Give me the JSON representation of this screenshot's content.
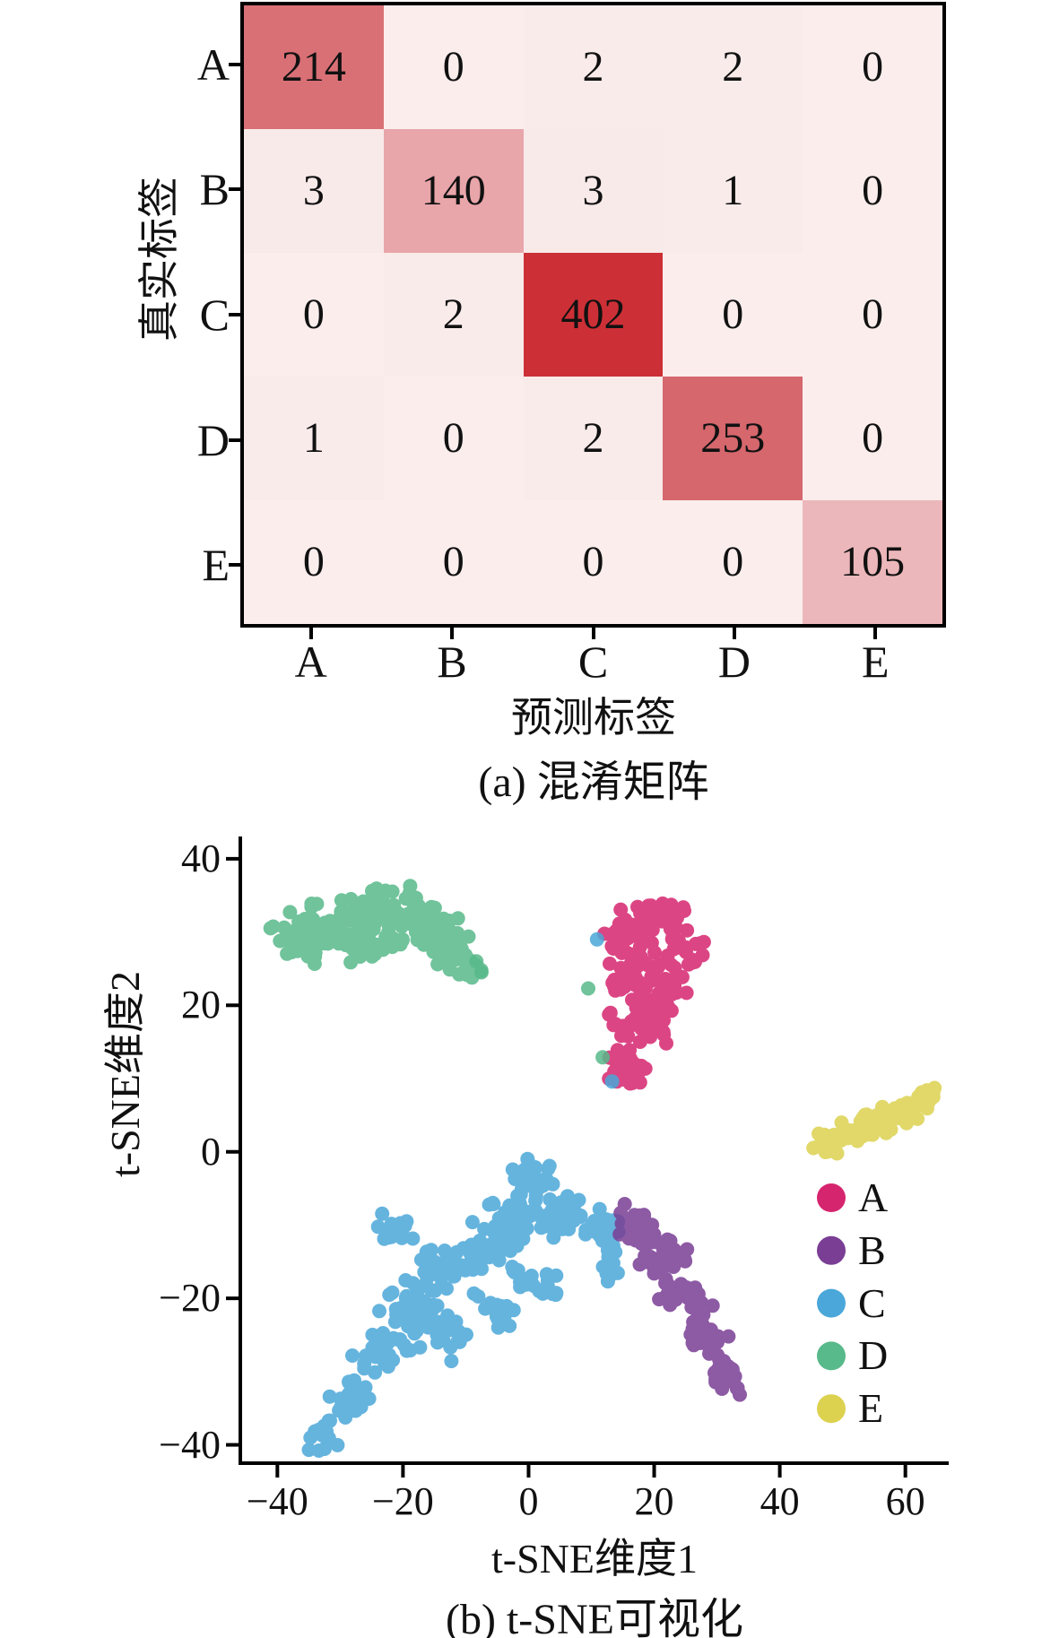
{
  "chart_data": [
    {
      "type": "heatmap",
      "title": "(a) 混淆矩阵",
      "xlabel": "预测标签",
      "ylabel": "真实标签",
      "x_categories": [
        "A",
        "B",
        "C",
        "D",
        "E"
      ],
      "y_categories": [
        "A",
        "B",
        "C",
        "D",
        "E"
      ],
      "values": [
        [
          214,
          0,
          2,
          2,
          0
        ],
        [
          3,
          140,
          3,
          1,
          0
        ],
        [
          0,
          2,
          402,
          0,
          0
        ],
        [
          1,
          0,
          2,
          253,
          0
        ],
        [
          0,
          0,
          0,
          0,
          105
        ]
      ],
      "value_colors": {
        "0": "#faedec",
        "1": "#f9ebea",
        "2": "#f9ebea",
        "3": "#f8eae9",
        "105": "#ecb7ba",
        "140": "#e8a5aa",
        "214": "#d97076",
        "253": "#d5676d",
        "402": "#cc3036"
      },
      "text_color": "#111111",
      "border_color": "#000000"
    },
    {
      "type": "scatter",
      "title": "(b) t-SNE可视化",
      "xlabel": "t-SNE维度1",
      "ylabel": "t-SNE维度2",
      "xticks": [
        "−40",
        "−20",
        "0",
        "20",
        "40",
        "60"
      ],
      "xtick_values": [
        -40,
        -20,
        0,
        20,
        40,
        60
      ],
      "yticks": [
        "40",
        "20",
        "0",
        "−20",
        "−40"
      ],
      "ytick_values": [
        40,
        20,
        0,
        -20,
        -40
      ],
      "xlim": [
        -45.9,
        66.9
      ],
      "ylim": [
        -42.5,
        42.8
      ],
      "grid": false,
      "legend_position": "right-middle",
      "point_radius_px": 8,
      "point_opacity": 0.85,
      "blob_format": "[center_x, center_y, radius_x, radius_y, angle_deg, n_points]",
      "series": [
        {
          "name": "C",
          "color": "#4ba7d9",
          "count": 424,
          "blobs": [
            [
              1,
              -3.5,
              3,
              2.2,
              0,
              25
            ],
            [
              -1.5,
              -8.5,
              4.5,
              2.8,
              0,
              40
            ],
            [
              5.5,
              -9,
              3.8,
              2.5,
              0,
              35
            ],
            [
              11.5,
              -10,
              3,
              2.2,
              0,
              28
            ],
            [
              12.8,
              -16.5,
              1.3,
              3.5,
              0,
              14
            ],
            [
              -6.5,
              -12.5,
              4.5,
              3,
              0,
              38
            ],
            [
              -13,
              -16,
              4.5,
              3,
              0,
              38
            ],
            [
              -19,
              -21,
              4.5,
              3,
              0,
              36
            ],
            [
              -24,
              -27,
              4,
              2.8,
              25,
              32
            ],
            [
              -29,
              -34,
              3.5,
              2.5,
              30,
              28
            ],
            [
              -33,
              -39,
              2.5,
              1.8,
              25,
              16
            ],
            [
              -13.5,
              -25,
              4.5,
              2.8,
              -20,
              30
            ],
            [
              1,
              -17.5,
              3.8,
              2.2,
              -25,
              24
            ],
            [
              -5,
              -21.5,
              3.8,
              2.2,
              -25,
              24
            ],
            [
              -21,
              -11,
              3,
              2,
              -25,
              16
            ]
          ]
        },
        {
          "name": "B",
          "color": "#7a3e95",
          "count": 147,
          "blobs": [
            [
              17.5,
              -10,
              3.2,
              2.3,
              -30,
              30
            ],
            [
              21.5,
              -14.5,
              3.8,
              2.6,
              -35,
              35
            ],
            [
              25,
              -20,
              3.6,
              2.6,
              -40,
              32
            ],
            [
              28.5,
              -25.5,
              3.2,
              2.2,
              -42,
              28
            ],
            [
              31.5,
              -30.5,
              2.8,
              1.8,
              -40,
              22
            ]
          ]
        },
        {
          "name": "D",
          "color": "#58b98a",
          "count": 256,
          "blobs": [
            [
              -37,
              29.5,
              4,
              2.5,
              -15,
              40
            ],
            [
              -30,
              31.5,
              5,
              3,
              0,
              50
            ],
            [
              -23,
              32.5,
              5,
              3,
              5,
              50
            ],
            [
              -16.5,
              31,
              4.5,
              3,
              -15,
              45
            ],
            [
              -11,
              27,
              3.5,
              2.5,
              -25,
              35
            ],
            [
              -26,
              27.5,
              5,
              2,
              0,
              26
            ],
            [
              -8,
              24.5,
              2,
              1.5,
              -20,
              10
            ]
          ]
        },
        {
          "name": "A",
          "color": "#d6256f",
          "count": 218,
          "blobs": [
            [
              19.5,
              31.5,
              5.5,
              3.2,
              15,
              50
            ],
            [
              16.5,
              25,
              4,
              3,
              0,
              40
            ],
            [
              17.5,
              18,
              4.2,
              3.5,
              0,
              45
            ],
            [
              15.5,
              11.5,
              3,
              2.8,
              0,
              28
            ],
            [
              22.5,
              22.5,
              3.2,
              2.8,
              0,
              25
            ],
            [
              24.5,
              28,
              3,
              2.5,
              0,
              20
            ],
            [
              14,
              30.5,
              2.5,
              2.5,
              0,
              10
            ]
          ]
        },
        {
          "name": "E",
          "color": "#dcd24f",
          "count": 105,
          "blobs": [
            [
              47.5,
              0.8,
              2.8,
              1.7,
              20,
              22
            ],
            [
              52,
              2.5,
              3,
              1.8,
              20,
              24
            ],
            [
              56.5,
              4.2,
              3,
              1.8,
              20,
              24
            ],
            [
              60.5,
              6,
              2.8,
              1.7,
              20,
              22
            ],
            [
              63.5,
              7.5,
              2,
              1.4,
              20,
              13
            ]
          ]
        }
      ],
      "stray_points": [
        {
          "series": "D",
          "x": 9.5,
          "y": 22.3
        },
        {
          "series": "D",
          "x": 11.8,
          "y": 12.9
        },
        {
          "series": "D",
          "x": -8.3,
          "y": 26.0
        },
        {
          "series": "D",
          "x": -7.5,
          "y": 24.5
        },
        {
          "series": "C",
          "x": 10.9,
          "y": 29.0
        },
        {
          "series": "C",
          "x": 13.3,
          "y": 9.6
        }
      ],
      "legend": [
        {
          "label": "A",
          "color": "#d6256f"
        },
        {
          "label": "B",
          "color": "#7a3e95"
        },
        {
          "label": "C",
          "color": "#4ba7d9"
        },
        {
          "label": "D",
          "color": "#58b98a"
        },
        {
          "label": "E",
          "color": "#dcd24f"
        }
      ]
    }
  ]
}
